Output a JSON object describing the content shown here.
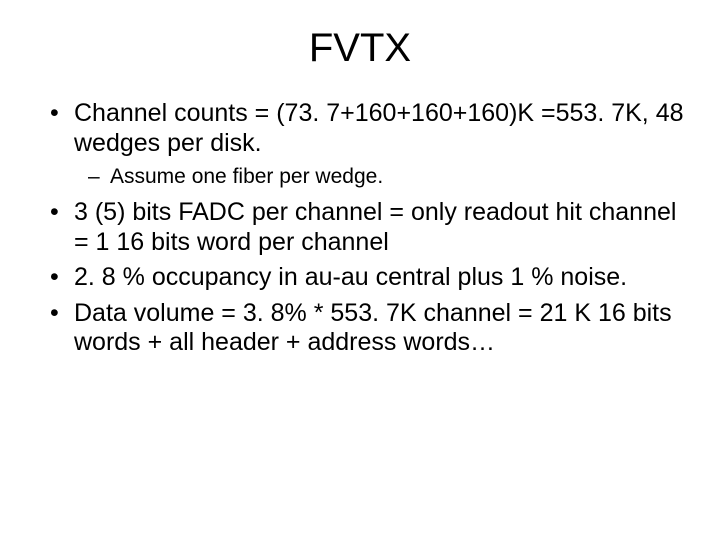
{
  "title": "FVTX",
  "bullets": [
    {
      "text": "Channel counts = (73. 7+160+160+160)K =553. 7K, 48 wedges per disk.",
      "sub": [
        "Assume one fiber per wedge."
      ]
    },
    {
      "text": "3 (5) bits FADC per channel = only readout hit channel = 1 16 bits word per channel"
    },
    {
      "text": "2. 8 % occupancy in au-au central plus 1 % noise."
    },
    {
      "text": "Data volume  =  3. 8% * 553. 7K channel = 21 K 16 bits words + all header + address words…"
    }
  ]
}
